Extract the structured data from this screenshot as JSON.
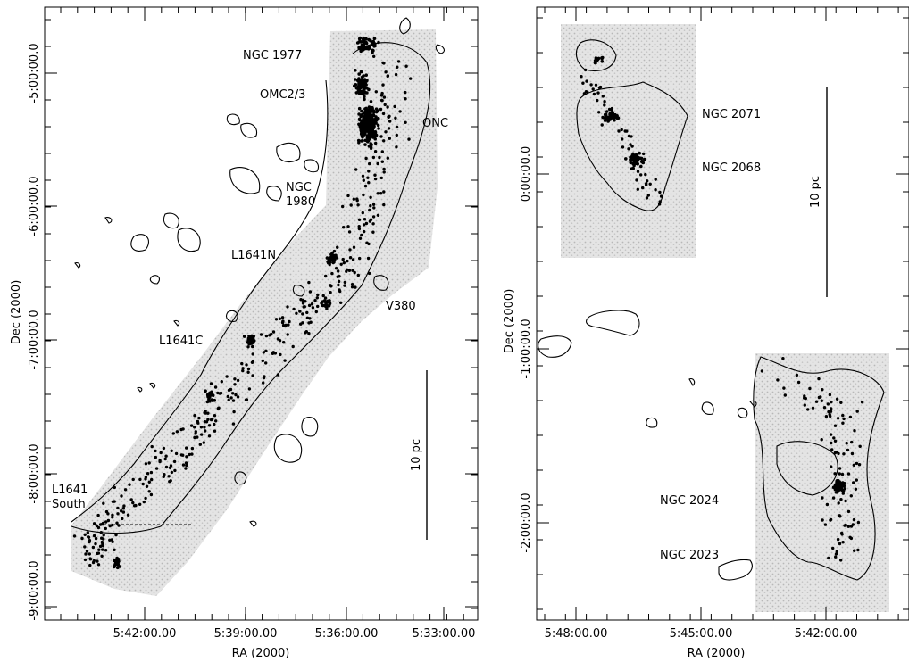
{
  "chart_data": [
    {
      "type": "scatter",
      "xlabel": "RA (2000)",
      "ylabel": "Dec (2000)",
      "x_ticks": [
        "5:42:00.00",
        "5:39:00.00",
        "5:36:00.00",
        "5:33:00.00"
      ],
      "y_ticks": [
        "-5:00:00.0",
        "-6:00:00.0",
        "-7:00:00.0",
        "-8:00:00.0",
        "-9:00:00.0"
      ],
      "annotations": [
        {
          "text": "NGC 1977",
          "ra": "5:35:30",
          "dec": -4.85
        },
        {
          "text": "OMC2/3",
          "ra": "5:35:20",
          "dec": -5.17
        },
        {
          "text": "ONC",
          "ra": "5:35:15",
          "dec": -5.38
        },
        {
          "text": "NGC",
          "ra": "5:36:00",
          "dec": -5.85
        },
        {
          "text": "1980",
          "ra": "5:35:25",
          "dec": -5.92
        },
        {
          "text": "L1641N",
          "ra": "5:36:10",
          "dec": -6.35
        },
        {
          "text": "V380",
          "ra": "5:36:25",
          "dec": -6.75
        },
        {
          "text": "L1641C",
          "ra": "5:38:50",
          "dec": -7.0
        },
        {
          "text": "L1641",
          "ra": "5:41:40",
          "dec": -8.0
        },
        {
          "text": "South",
          "ra": "5:41:40",
          "dec": -8.05
        }
      ],
      "scale_bar": "10 pc"
    },
    {
      "type": "scatter",
      "xlabel": "RA (2000)",
      "ylabel": "Dec (2000)",
      "x_ticks": [
        "5:48:00.00",
        "5:45:00.00",
        "5:42:00.00"
      ],
      "y_ticks": [
        "0:00:00.0",
        "-1:00:00.0",
        "-2:00:00.0"
      ],
      "annotations": [
        {
          "text": "NGC 2071",
          "ra": "5:47:04",
          "dec": 0.37
        },
        {
          "text": "NGC 2068",
          "ra": "5:46:46",
          "dec": 0.05
        },
        {
          "text": "NGC 2024",
          "ra": "5:41:43",
          "dec": -1.9
        },
        {
          "text": "NGC 2023",
          "ra": "5:41:38",
          "dec": -2.26
        }
      ],
      "scale_bar": "10 pc"
    }
  ]
}
